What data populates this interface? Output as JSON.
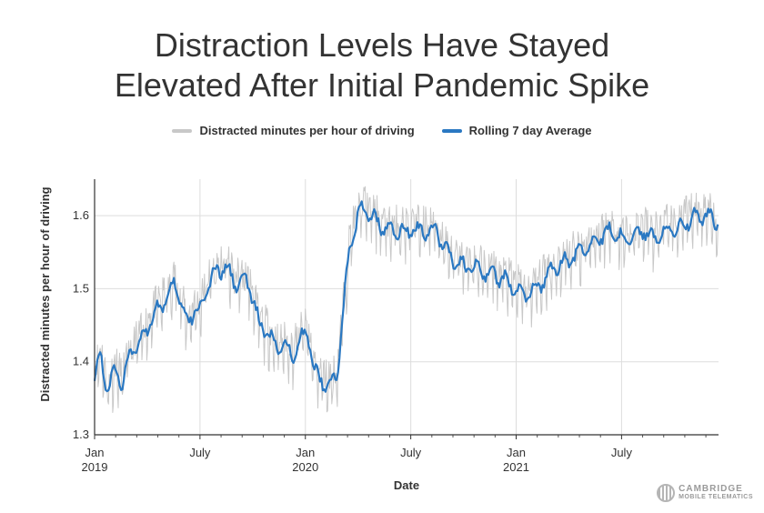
{
  "chart_data": {
    "type": "line",
    "title_lines": [
      "Distraction Levels Have Stayed",
      "Elevated After Initial Pandemic Spike"
    ],
    "xlabel": "Date",
    "ylabel": "Distracted minutes per hour of driving",
    "ylim": [
      1.3,
      1.65
    ],
    "yticks": [
      1.3,
      1.4,
      1.5,
      1.6
    ],
    "xlim": [
      0,
      29.6
    ],
    "xticks": [
      {
        "x": 0,
        "label": "Jan",
        "sub": "2019"
      },
      {
        "x": 5,
        "label": "July",
        "sub": ""
      },
      {
        "x": 10,
        "label": "Jan",
        "sub": "2020"
      },
      {
        "x": 15,
        "label": "July",
        "sub": ""
      },
      {
        "x": 20,
        "label": "Jan",
        "sub": "2021"
      },
      {
        "x": 25,
        "label": "July",
        "sub": ""
      }
    ],
    "grid": true,
    "x_units": "months since Jan 2019",
    "series": [
      {
        "name": "Distracted minutes per hour of driving",
        "color": "#c8c8c8",
        "style": "daily",
        "amplitude": 0.038,
        "base": [
          [
            0,
            1.38
          ],
          [
            0.3,
            1.41
          ],
          [
            0.6,
            1.36
          ],
          [
            1,
            1.39
          ],
          [
            1.3,
            1.37
          ],
          [
            1.7,
            1.41
          ],
          [
            2.2,
            1.43
          ],
          [
            2.7,
            1.46
          ],
          [
            3.2,
            1.48
          ],
          [
            3.6,
            1.49
          ],
          [
            3.8,
            1.51
          ],
          [
            4.2,
            1.47
          ],
          [
            4.4,
            1.45
          ],
          [
            4.7,
            1.47
          ],
          [
            5,
            1.47
          ],
          [
            5.3,
            1.5
          ],
          [
            5.7,
            1.52
          ],
          [
            6.2,
            1.53
          ],
          [
            6.6,
            1.51
          ],
          [
            7.2,
            1.51
          ],
          [
            7.5,
            1.49
          ],
          [
            7.8,
            1.45
          ],
          [
            8.2,
            1.44
          ],
          [
            8.6,
            1.42
          ],
          [
            9,
            1.42
          ],
          [
            9.4,
            1.41
          ],
          [
            9.7,
            1.43
          ],
          [
            10.1,
            1.44
          ],
          [
            10.4,
            1.39
          ],
          [
            10.6,
            1.38
          ],
          [
            11,
            1.37
          ],
          [
            11.2,
            1.37
          ],
          [
            11.5,
            1.38
          ],
          [
            11.8,
            1.47
          ],
          [
            12.1,
            1.56
          ],
          [
            12.4,
            1.59
          ],
          [
            12.7,
            1.61
          ],
          [
            13.1,
            1.6
          ],
          [
            13.5,
            1.59
          ],
          [
            13.9,
            1.58
          ],
          [
            14.5,
            1.58
          ],
          [
            15,
            1.58
          ],
          [
            15.6,
            1.58
          ],
          [
            16.2,
            1.58
          ],
          [
            16.6,
            1.56
          ],
          [
            17,
            1.54
          ],
          [
            17.5,
            1.53
          ],
          [
            18,
            1.53
          ],
          [
            18.5,
            1.52
          ],
          [
            19,
            1.52
          ],
          [
            19.5,
            1.51
          ],
          [
            20,
            1.5
          ],
          [
            20.5,
            1.49
          ],
          [
            21,
            1.5
          ],
          [
            21.5,
            1.52
          ],
          [
            22,
            1.53
          ],
          [
            22.5,
            1.54
          ],
          [
            23,
            1.55
          ],
          [
            23.5,
            1.56
          ],
          [
            24,
            1.57
          ],
          [
            24.5,
            1.58
          ],
          [
            25,
            1.57
          ],
          [
            25.5,
            1.57
          ],
          [
            26,
            1.58
          ],
          [
            26.5,
            1.57
          ],
          [
            27,
            1.58
          ],
          [
            27.5,
            1.58
          ],
          [
            28,
            1.59
          ],
          [
            28.5,
            1.6
          ],
          [
            29,
            1.6
          ],
          [
            29.6,
            1.59
          ]
        ]
      },
      {
        "name": "Rolling 7 day Average",
        "color": "#2a78c2",
        "style": "smooth",
        "amplitude": 0.009,
        "base": [
          [
            0,
            1.38
          ],
          [
            0.3,
            1.41
          ],
          [
            0.6,
            1.36
          ],
          [
            1,
            1.39
          ],
          [
            1.3,
            1.37
          ],
          [
            1.7,
            1.41
          ],
          [
            2.2,
            1.43
          ],
          [
            2.7,
            1.46
          ],
          [
            3.2,
            1.48
          ],
          [
            3.6,
            1.49
          ],
          [
            3.8,
            1.51
          ],
          [
            4.2,
            1.47
          ],
          [
            4.4,
            1.45
          ],
          [
            4.7,
            1.47
          ],
          [
            5,
            1.47
          ],
          [
            5.3,
            1.5
          ],
          [
            5.7,
            1.52
          ],
          [
            6.2,
            1.53
          ],
          [
            6.6,
            1.51
          ],
          [
            7.2,
            1.51
          ],
          [
            7.5,
            1.49
          ],
          [
            7.8,
            1.45
          ],
          [
            8.2,
            1.44
          ],
          [
            8.6,
            1.42
          ],
          [
            9,
            1.42
          ],
          [
            9.4,
            1.41
          ],
          [
            9.7,
            1.43
          ],
          [
            10.1,
            1.44
          ],
          [
            10.4,
            1.39
          ],
          [
            10.6,
            1.38
          ],
          [
            11,
            1.37
          ],
          [
            11.2,
            1.37
          ],
          [
            11.5,
            1.38
          ],
          [
            11.8,
            1.47
          ],
          [
            12.1,
            1.56
          ],
          [
            12.4,
            1.59
          ],
          [
            12.7,
            1.61
          ],
          [
            13.1,
            1.6
          ],
          [
            13.5,
            1.59
          ],
          [
            13.9,
            1.58
          ],
          [
            14.5,
            1.58
          ],
          [
            15,
            1.58
          ],
          [
            15.6,
            1.58
          ],
          [
            16.2,
            1.58
          ],
          [
            16.6,
            1.56
          ],
          [
            17,
            1.54
          ],
          [
            17.5,
            1.53
          ],
          [
            18,
            1.53
          ],
          [
            18.5,
            1.52
          ],
          [
            19,
            1.52
          ],
          [
            19.5,
            1.51
          ],
          [
            20,
            1.5
          ],
          [
            20.5,
            1.49
          ],
          [
            21,
            1.5
          ],
          [
            21.5,
            1.52
          ],
          [
            22,
            1.53
          ],
          [
            22.5,
            1.54
          ],
          [
            23,
            1.55
          ],
          [
            23.5,
            1.56
          ],
          [
            24,
            1.57
          ],
          [
            24.5,
            1.58
          ],
          [
            25,
            1.57
          ],
          [
            25.5,
            1.57
          ],
          [
            26,
            1.58
          ],
          [
            26.5,
            1.57
          ],
          [
            27,
            1.58
          ],
          [
            27.5,
            1.58
          ],
          [
            28,
            1.59
          ],
          [
            28.5,
            1.6
          ],
          [
            29,
            1.6
          ],
          [
            29.6,
            1.59
          ]
        ]
      }
    ]
  },
  "legend": [
    {
      "label": "Distracted minutes per hour of driving",
      "color": "#c8c8c8"
    },
    {
      "label": "Rolling 7 day Average",
      "color": "#2a78c2"
    }
  ],
  "logo": {
    "line1": "CAMBRIDGE",
    "line2": "MOBILE TELEMATICS"
  }
}
